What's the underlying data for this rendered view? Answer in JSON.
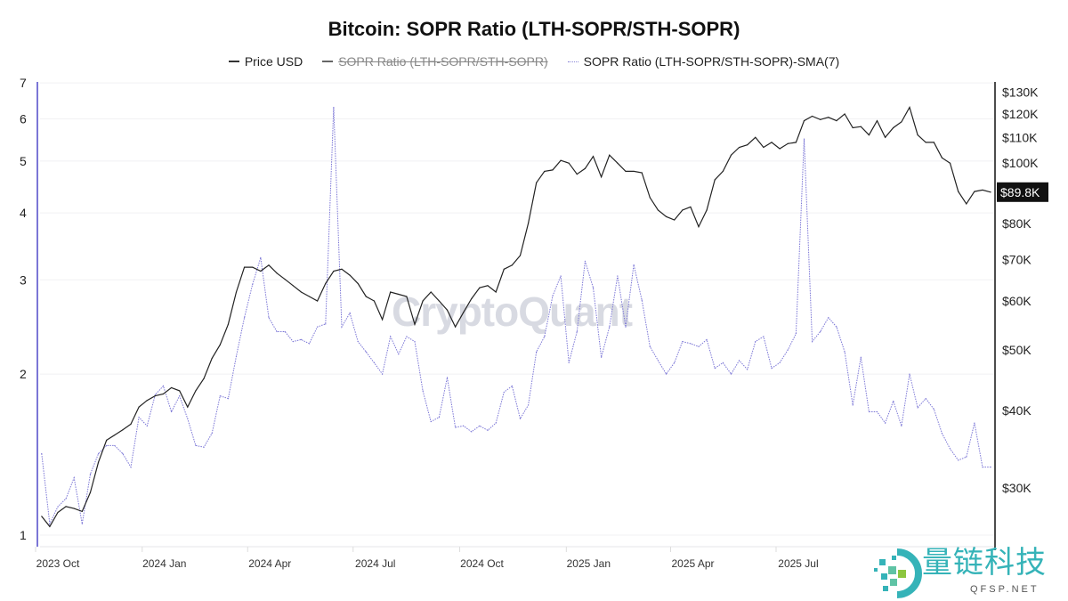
{
  "chart_data": {
    "type": "line",
    "title": "Bitcoin: SOPR Ratio (LTH-SOPR/STH-SOPR)",
    "legend": {
      "placement": "top",
      "items": [
        {
          "label": "Price USD",
          "style": "solid",
          "color": "#222222",
          "disabled": false
        },
        {
          "label": "SOPR Ratio (LTH-SOPR/STH-SOPR)",
          "style": "solid",
          "color": "#555555",
          "disabled": true
        },
        {
          "label": "SOPR Ratio (LTH-SOPR/STH-SOPR)-SMA(7)",
          "style": "dotted",
          "color": "#7b76d6",
          "disabled": false
        }
      ]
    },
    "left_axis": {
      "scale": "log",
      "range": [
        0.96,
        7.3
      ],
      "ticks": [
        "1",
        "2",
        "3",
        "4",
        "5",
        "6",
        "7"
      ]
    },
    "right_axis": {
      "scale": "log",
      "ticks": [
        "$30K",
        "$40K",
        "$50K",
        "$60K",
        "$70K",
        "$80K",
        "$100K",
        "$110K",
        "$120K",
        "$130K"
      ],
      "tick_values": [
        30000,
        40000,
        50000,
        60000,
        70000,
        80000,
        100000,
        110000,
        120000,
        130000
      ],
      "current_label": "$89.8K",
      "current_value": 89800
    },
    "x_axis": {
      "ticks": [
        "2023 Oct",
        "2024 Jan",
        "2024 Apr",
        "2024 Jul",
        "2024 Oct",
        "2025 Jan",
        "2025 Apr",
        "2025 Jul"
      ],
      "tick_dates": [
        "2023-10-01",
        "2024-01-01",
        "2024-04-01",
        "2024-07-01",
        "2024-10-01",
        "2025-01-01",
        "2025-04-01",
        "2025-07-01"
      ]
    },
    "grid": true,
    "x": [
      "2023-09-17",
      "2023-09-24",
      "2023-10-01",
      "2023-10-08",
      "2023-10-15",
      "2023-10-22",
      "2023-10-29",
      "2023-11-05",
      "2023-11-12",
      "2023-11-19",
      "2023-11-26",
      "2023-12-03",
      "2023-12-10",
      "2023-12-17",
      "2023-12-24",
      "2023-12-31",
      "2024-01-07",
      "2024-01-14",
      "2024-01-21",
      "2024-01-28",
      "2024-02-04",
      "2024-02-11",
      "2024-02-18",
      "2024-02-25",
      "2024-03-03",
      "2024-03-10",
      "2024-03-17",
      "2024-03-24",
      "2024-03-31",
      "2024-04-07",
      "2024-04-14",
      "2024-04-21",
      "2024-04-28",
      "2024-05-05",
      "2024-05-12",
      "2024-05-19",
      "2024-05-26",
      "2024-06-02",
      "2024-06-09",
      "2024-06-16",
      "2024-06-23",
      "2024-06-30",
      "2024-07-07",
      "2024-07-14",
      "2024-07-21",
      "2024-07-28",
      "2024-08-04",
      "2024-08-11",
      "2024-08-18",
      "2024-08-25",
      "2024-09-01",
      "2024-09-08",
      "2024-09-15",
      "2024-09-22",
      "2024-09-29",
      "2024-10-06",
      "2024-10-13",
      "2024-10-20",
      "2024-10-27",
      "2024-11-03",
      "2024-11-10",
      "2024-11-17",
      "2024-11-24",
      "2024-12-01",
      "2024-12-08",
      "2024-12-15",
      "2024-12-22",
      "2024-12-29",
      "2025-01-05",
      "2025-01-12",
      "2025-01-19",
      "2025-01-26",
      "2025-02-02",
      "2025-02-09",
      "2025-02-16",
      "2025-02-23",
      "2025-03-02",
      "2025-03-09",
      "2025-03-16",
      "2025-03-23",
      "2025-03-30",
      "2025-04-06",
      "2025-04-13",
      "2025-04-20",
      "2025-04-27",
      "2025-05-04",
      "2025-05-11",
      "2025-05-18",
      "2025-05-25",
      "2025-06-01",
      "2025-06-08",
      "2025-06-15",
      "2025-06-22",
      "2025-06-29",
      "2025-07-06",
      "2025-07-13",
      "2025-07-20",
      "2025-07-27",
      "2025-08-03",
      "2025-08-10",
      "2025-08-17",
      "2025-08-24",
      "2025-08-31",
      "2025-09-07",
      "2025-09-14",
      "2025-09-21",
      "2025-09-28",
      "2025-10-05",
      "2025-10-12",
      "2025-10-19",
      "2025-10-26",
      "2025-11-02",
      "2025-11-09",
      "2025-11-16",
      "2025-11-23",
      "2025-11-30",
      "2025-12-07",
      "2025-12-14"
    ],
    "series": [
      {
        "name": "Price USD",
        "axis": "right",
        "values": [
          27000,
          26000,
          27400,
          28000,
          27800,
          27500,
          29500,
          33000,
          35800,
          36500,
          37200,
          38000,
          40500,
          41500,
          42200,
          42500,
          43500,
          43000,
          40500,
          43000,
          45000,
          48500,
          51000,
          55000,
          62000,
          68000,
          68000,
          67000,
          68500,
          66500,
          65000,
          63500,
          62000,
          61000,
          60000,
          64000,
          67000,
          67500,
          66000,
          64000,
          61000,
          60000,
          56000,
          62000,
          61500,
          61000,
          55000,
          60000,
          62000,
          60000,
          58000,
          54500,
          57500,
          60500,
          63000,
          63500,
          62000,
          67500,
          68500,
          71000,
          80000,
          93000,
          97000,
          97500,
          101000,
          100000,
          96000,
          98000,
          102500,
          95000,
          103000,
          100000,
          97000,
          97000,
          96500,
          88000,
          84000,
          82000,
          81000,
          84000,
          85000,
          79000,
          84000,
          94000,
          97000,
          103000,
          106000,
          107000,
          110000,
          106000,
          108000,
          105500,
          107500,
          108000,
          117000,
          119000,
          117500,
          118500,
          117000,
          120000,
          114000,
          114500,
          111000,
          117000,
          110000,
          114000,
          116500,
          123000,
          111000,
          108000,
          108000,
          102000,
          100000,
          90000,
          86000,
          90000,
          90500,
          89800
        ]
      },
      {
        "name": "SOPR Ratio (LTH-SOPR/STH-SOPR)-SMA(7)",
        "axis": "left",
        "values": [
          1.42,
          1.05,
          1.13,
          1.17,
          1.28,
          1.05,
          1.3,
          1.42,
          1.47,
          1.47,
          1.42,
          1.34,
          1.66,
          1.6,
          1.83,
          1.9,
          1.7,
          1.82,
          1.65,
          1.47,
          1.46,
          1.55,
          1.82,
          1.8,
          2.16,
          2.55,
          2.94,
          3.3,
          2.55,
          2.4,
          2.4,
          2.3,
          2.32,
          2.28,
          2.45,
          2.48,
          6.3,
          2.45,
          2.6,
          2.3,
          2.2,
          2.1,
          2.0,
          2.35,
          2.18,
          2.35,
          2.3,
          1.86,
          1.63,
          1.66,
          1.97,
          1.59,
          1.6,
          1.56,
          1.6,
          1.57,
          1.62,
          1.85,
          1.9,
          1.65,
          1.75,
          2.2,
          2.35,
          2.8,
          3.05,
          2.1,
          2.4,
          3.25,
          2.9,
          2.15,
          2.45,
          3.05,
          2.45,
          3.2,
          2.75,
          2.25,
          2.12,
          2.0,
          2.1,
          2.3,
          2.28,
          2.25,
          2.32,
          2.05,
          2.1,
          2.0,
          2.12,
          2.04,
          2.3,
          2.35,
          2.05,
          2.1,
          2.22,
          2.38,
          5.5,
          2.3,
          2.4,
          2.55,
          2.45,
          2.2,
          1.75,
          2.15,
          1.7,
          1.7,
          1.62,
          1.78,
          1.6,
          2.0,
          1.73,
          1.8,
          1.72,
          1.55,
          1.45,
          1.38,
          1.4,
          1.62,
          1.34,
          1.34
        ]
      }
    ]
  },
  "watermark": "CryptoQuant",
  "logo": {
    "text": "量链科技",
    "subtext": "QFSP.NET",
    "colors": [
      "#35b3b8",
      "#8cc63f"
    ]
  }
}
